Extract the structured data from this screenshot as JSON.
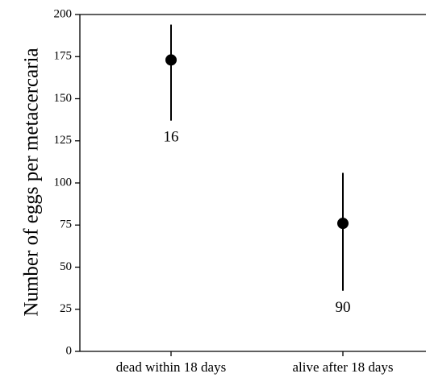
{
  "chart_data": {
    "type": "scatter",
    "title": "",
    "xlabel": "",
    "ylabel": "Number of eggs per metacercaria",
    "categories": [
      "dead within 18 days",
      "alive after 18 days"
    ],
    "points": [
      {
        "category": "dead within 18 days",
        "value": 173,
        "lower": 137,
        "upper": 194,
        "n_label": "16"
      },
      {
        "category": "alive after 18 days",
        "value": 76,
        "lower": 36,
        "upper": 106,
        "n_label": "90"
      }
    ],
    "ylim": [
      0,
      200
    ],
    "yticks": [
      0,
      25,
      50,
      75,
      100,
      125,
      150,
      175,
      200
    ],
    "grid": false,
    "legend": "none",
    "colors": {
      "marker": "#000000",
      "axis": "#000000"
    }
  }
}
